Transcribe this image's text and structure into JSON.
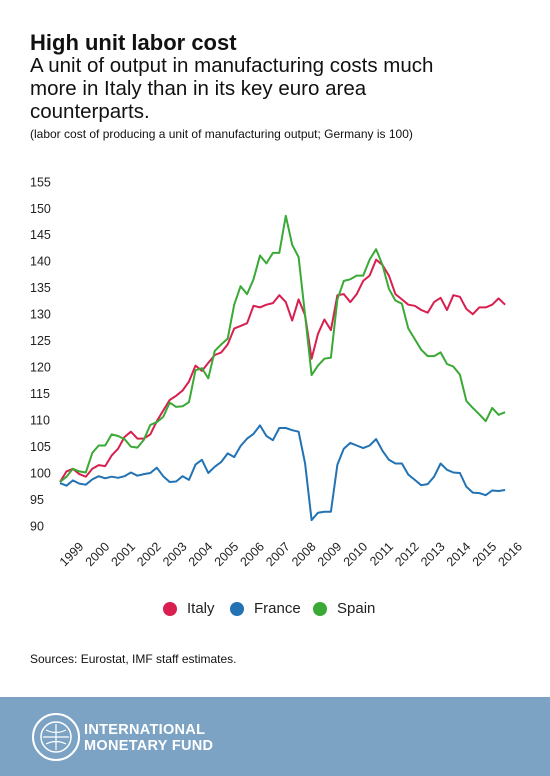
{
  "chart_data": {
    "type": "line",
    "title": "High unit labor cost",
    "subtitle": "A unit of output in manufacturing costs much more in Italy than in its key euro area counterparts.",
    "note": "(labor cost of producing a unit of manufacturing output; Germany is 100)",
    "source": "Sources: Eurostat, IMF staff estimates.",
    "categories": [
      "1999",
      null,
      null,
      null,
      "2000",
      null,
      null,
      null,
      "2001",
      null,
      null,
      null,
      "2002",
      null,
      null,
      null,
      "2003",
      null,
      null,
      null,
      "2004",
      null,
      null,
      null,
      "2005",
      null,
      null,
      null,
      "2006",
      null,
      null,
      null,
      "2007",
      null,
      null,
      null,
      "2008",
      null,
      null,
      null,
      "2009",
      null,
      null,
      null,
      "2010",
      null,
      null,
      null,
      "2011",
      null,
      null,
      null,
      "2012",
      null,
      null,
      null,
      "2013",
      null,
      null,
      null,
      "2014",
      null,
      null,
      null,
      "2015",
      null,
      null,
      null,
      "2016",
      null
    ],
    "series": [
      {
        "name": "Italy",
        "color": "#d81f4f",
        "values": [
          98.5,
          100.5,
          101,
          100,
          99.5,
          101,
          101.7,
          101.5,
          103.5,
          104.8,
          107,
          108,
          106.7,
          106.7,
          107.5,
          110,
          112,
          114,
          114.8,
          115.8,
          117.5,
          120.5,
          119.5,
          121,
          122.5,
          123,
          124.5,
          127.5,
          128,
          128.5,
          131.8,
          131.5,
          132,
          132.3,
          133.8,
          132.5,
          129,
          133,
          130,
          121.8,
          126.5,
          129.2,
          127.2,
          133.8,
          134,
          132.5,
          134,
          136.5,
          137.5,
          140.5,
          139.5,
          137.5,
          134,
          133,
          132,
          131.8,
          131,
          130.5,
          132.5,
          133.3,
          131,
          133.8,
          133.5,
          131.2,
          130.2,
          131.5,
          131.5,
          132,
          133.2,
          132
        ]
      },
      {
        "name": "France",
        "color": "#2272b4",
        "values": [
          98.3,
          97.8,
          98.8,
          98.2,
          98,
          99,
          99.6,
          99.2,
          99.5,
          99.3,
          99.6,
          100.3,
          99.7,
          100,
          100.2,
          101.2,
          99.6,
          98.5,
          98.6,
          99.6,
          98.9,
          101.8,
          102.7,
          100.2,
          101.4,
          102.3,
          103.9,
          103.2,
          105.3,
          106.7,
          107.6,
          109.2,
          107.2,
          106.4,
          108.7,
          108.7,
          108.3,
          108,
          102,
          91.3,
          92.7,
          92.9,
          92.9,
          101.8,
          104.8,
          105.9,
          105.4,
          104.9,
          105.4,
          106.6,
          104.4,
          102.7,
          102,
          102,
          99.9,
          98.9,
          97.9,
          98.1,
          99.5,
          102,
          100.8,
          100.3,
          100.2,
          97.6,
          96.5,
          96.4,
          96,
          96.9,
          96.8,
          97
        ]
      },
      {
        "name": "Spain",
        "color": "#3aa935",
        "values": [
          98.5,
          99.5,
          101,
          100.5,
          100.3,
          104,
          105.4,
          105.4,
          107.5,
          107.2,
          106.6,
          105.2,
          105,
          106.5,
          109.3,
          109.8,
          110.8,
          113.5,
          112.7,
          112.8,
          113.6,
          119.6,
          120,
          118.1,
          123.3,
          124.5,
          125.6,
          132,
          135.5,
          134,
          136.8,
          141.3,
          139.8,
          141.8,
          141.8,
          148.8,
          143.3,
          141,
          130,
          118.7,
          120.5,
          121.8,
          122,
          133,
          136.5,
          136.8,
          137.5,
          137.5,
          140.5,
          142.5,
          139.5,
          135,
          132.8,
          132.2,
          127.5,
          125.5,
          123.5,
          122.3,
          122.3,
          123,
          120.8,
          120.3,
          118.8,
          113.8,
          112.5,
          111.3,
          110,
          112.5,
          111.2,
          111.7
        ]
      }
    ],
    "ylim": [
      90,
      155
    ],
    "yticks": [
      90,
      95,
      100,
      105,
      110,
      115,
      120,
      125,
      130,
      135,
      140,
      145,
      150,
      155
    ],
    "grid": false,
    "legend": "bottom"
  },
  "logo": {
    "line1": "INTERNATIONAL",
    "line2": "MONETARY FUND"
  }
}
